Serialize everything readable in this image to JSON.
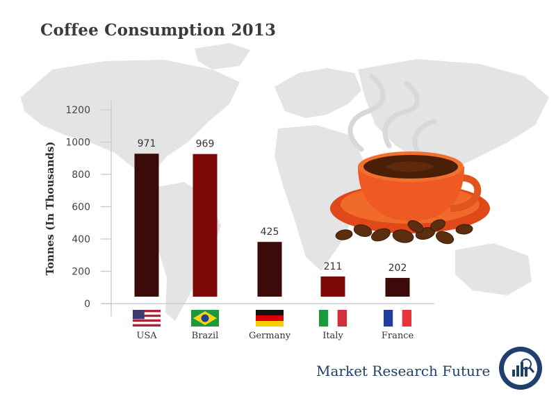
{
  "chart_data": {
    "type": "bar",
    "title": "Coffee Consumption 2013",
    "ylabel": "Tonnes (In Thousands)",
    "xlabel": "",
    "categories": [
      "USA",
      "Brazil",
      "Germany",
      "Italy",
      "France"
    ],
    "values": [
      971,
      969,
      425,
      211,
      202
    ],
    "data_labels": [
      "971",
      "969",
      "425",
      "211",
      "202"
    ],
    "yticks": [
      "0",
      "200",
      "400",
      "600",
      "800",
      "1000",
      "1200"
    ],
    "ylim": [
      0,
      1200
    ],
    "grid": false,
    "bar_colors": [
      "#3d0a0a",
      "#7d0606",
      "#3d0a0a",
      "#7d0606",
      "#3d0a0a"
    ],
    "flags": [
      "us-flag-icon",
      "brazil-flag-icon",
      "germany-flag-icon",
      "italy-flag-icon",
      "france-flag-icon"
    ]
  },
  "brand": {
    "name": "Market Research Future",
    "logo_text": "MARKET RESEARCH FUTURE",
    "color": "#1f3f6e"
  },
  "decor": [
    "world-map-background",
    "coffee-cup-illustration",
    "coffee-beans-illustration"
  ]
}
